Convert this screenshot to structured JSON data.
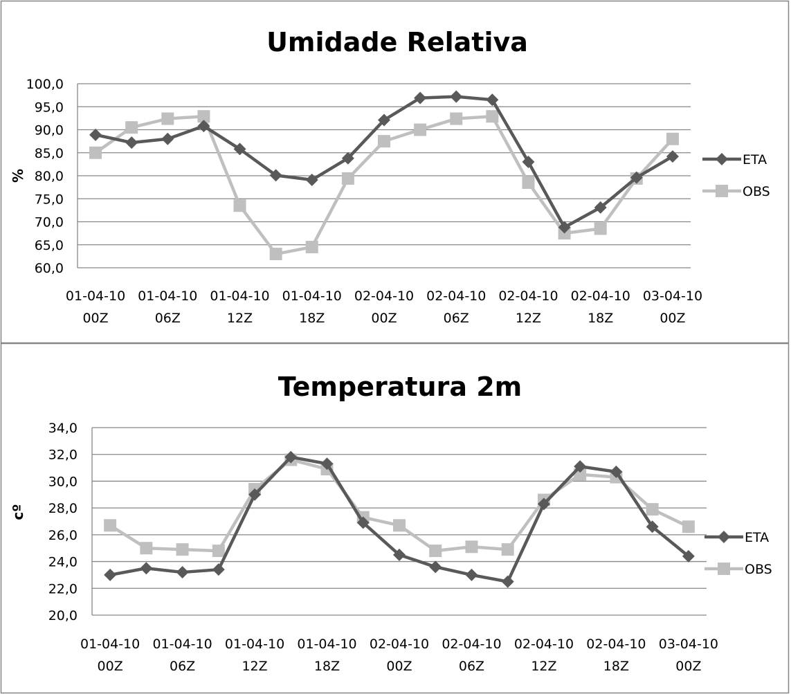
{
  "colors": {
    "eta": "#595959",
    "obs": "#bfbfbf",
    "grid": "#868686",
    "border": "#868686"
  },
  "chart_data": [
    {
      "type": "line",
      "title": "Umidade Relativa",
      "ylabel": "%",
      "ylim": [
        60,
        100
      ],
      "ytick_step": 5,
      "y_ticks": [
        "60,0",
        "65,0",
        "70,0",
        "75,0",
        "80,0",
        "85,0",
        "90,0",
        "95,0",
        "100,0"
      ],
      "x_tick_labels": [
        [
          "01-04-10",
          "00Z"
        ],
        [
          "01-04-10",
          "06Z"
        ],
        [
          "01-04-10",
          "12Z"
        ],
        [
          "01-04-10",
          "18Z"
        ],
        [
          "02-04-10",
          "00Z"
        ],
        [
          "02-04-10",
          "06Z"
        ],
        [
          "02-04-10",
          "12Z"
        ],
        [
          "02-04-10",
          "18Z"
        ],
        [
          "03-04-10",
          "00Z"
        ]
      ],
      "grid": true,
      "legend_position": "right",
      "series": [
        {
          "name": "ETA",
          "marker": "diamond",
          "values": [
            88.9,
            87.2,
            88.0,
            90.8,
            85.8,
            80.1,
            79.1,
            83.8,
            92.1,
            96.9,
            97.2,
            96.5,
            83.0,
            68.8,
            73.1,
            79.6,
            84.2
          ]
        },
        {
          "name": "OBS",
          "marker": "square",
          "values": [
            85.0,
            90.5,
            92.4,
            92.9,
            73.5,
            63.0,
            64.5,
            79.4,
            87.5,
            90.0,
            92.4,
            92.9,
            78.5,
            67.5,
            68.5,
            79.4,
            88.0
          ]
        }
      ]
    },
    {
      "type": "line",
      "title": "Temperatura 2m",
      "ylabel": "cº",
      "ylim": [
        20,
        34
      ],
      "ytick_step": 2,
      "y_ticks": [
        "20,0",
        "22,0",
        "24,0",
        "26,0",
        "28,0",
        "30,0",
        "32,0",
        "34,0"
      ],
      "x_tick_labels": [
        [
          "01-04-10",
          "00Z"
        ],
        [
          "01-04-10",
          "06Z"
        ],
        [
          "01-04-10",
          "12Z"
        ],
        [
          "01-04-10",
          "18Z"
        ],
        [
          "02-04-10",
          "00Z"
        ],
        [
          "02-04-10",
          "06Z"
        ],
        [
          "02-04-10",
          "12Z"
        ],
        [
          "02-04-10",
          "18Z"
        ],
        [
          "03-04-10",
          "00Z"
        ]
      ],
      "grid": true,
      "legend_position": "right",
      "series": [
        {
          "name": "ETA",
          "marker": "diamond",
          "values": [
            23.0,
            23.5,
            23.2,
            23.4,
            29.0,
            31.8,
            31.3,
            26.9,
            24.5,
            23.6,
            23.0,
            22.5,
            28.3,
            31.1,
            30.7,
            26.6,
            24.4
          ]
        },
        {
          "name": "OBS",
          "marker": "square",
          "values": [
            26.7,
            25.0,
            24.9,
            24.8,
            29.4,
            31.6,
            30.9,
            27.3,
            26.7,
            24.8,
            25.1,
            24.9,
            28.6,
            30.5,
            30.3,
            27.9,
            26.6
          ]
        }
      ]
    }
  ]
}
